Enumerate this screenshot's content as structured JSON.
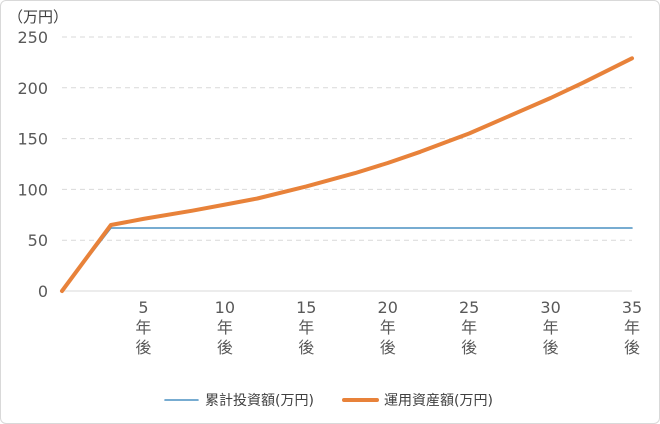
{
  "chart_data": {
    "type": "line",
    "y_unit_label": "（万円）",
    "ylim": [
      0,
      250
    ],
    "y_ticks": [
      0,
      50,
      100,
      150,
      200,
      250
    ],
    "x_range": [
      0,
      35
    ],
    "x_tick_values": [
      5,
      10,
      15,
      20,
      25,
      30,
      35
    ],
    "x_tick_labels": [
      [
        "5",
        "年",
        "後"
      ],
      [
        "10",
        "年",
        "後"
      ],
      [
        "15",
        "年",
        "後"
      ],
      [
        "20",
        "年",
        "後"
      ],
      [
        "25",
        "年",
        "後"
      ],
      [
        "30",
        "年",
        "後"
      ],
      [
        "35",
        "年",
        "後"
      ]
    ],
    "grid": "horizontal dashed",
    "legend_placement": "bottom",
    "series": [
      {
        "name": "累計投資額(万円)",
        "color": "#4a90c2",
        "points": [
          [
            0,
            0
          ],
          [
            3,
            62
          ],
          [
            35,
            62
          ]
        ]
      },
      {
        "name": "運用資産額(万円)",
        "color": "#e8823a",
        "points": [
          [
            0,
            0
          ],
          [
            3,
            65
          ],
          [
            5,
            71
          ],
          [
            8,
            79
          ],
          [
            10,
            85
          ],
          [
            12,
            91
          ],
          [
            15,
            103
          ],
          [
            18,
            116
          ],
          [
            20,
            126
          ],
          [
            22,
            137
          ],
          [
            25,
            155
          ],
          [
            28,
            176
          ],
          [
            30,
            190
          ],
          [
            32,
            205
          ],
          [
            35,
            229
          ]
        ]
      }
    ]
  }
}
